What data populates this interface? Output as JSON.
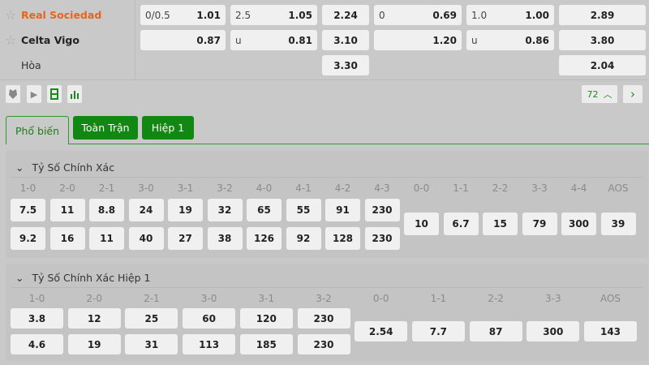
{
  "match": {
    "home": {
      "name": "Real Sociedad",
      "color": "#e8641b"
    },
    "away": {
      "name": "Celta Vigo"
    },
    "draw": {
      "name": "Hòa"
    },
    "rows": [
      [
        {
          "h": "0/0.5",
          "v": "1.01"
        },
        {
          "h": "2.5",
          "v": "1.05"
        },
        {
          "v": "2.24"
        },
        {
          "h": "0",
          "v": "0.69"
        },
        {
          "h": "1.0",
          "v": "1.00"
        },
        {
          "v": "2.89"
        }
      ],
      [
        {
          "h": "",
          "v": "0.87"
        },
        {
          "h": "u",
          "v": "0.81"
        },
        {
          "v": "3.10"
        },
        {
          "h": "",
          "v": "1.20"
        },
        {
          "h": "u",
          "v": "0.86"
        },
        {
          "v": "3.80"
        }
      ],
      [
        null,
        null,
        {
          "v": "3.30"
        },
        null,
        null,
        {
          "v": "2.04"
        }
      ]
    ]
  },
  "toolbar": {
    "icons": [
      "shield-icon",
      "play-icon",
      "list-icon",
      "stats-icon"
    ],
    "count": "72",
    "up": "^",
    "next": "›"
  },
  "tabs": [
    {
      "label": "Phổ biến",
      "active": true
    },
    {
      "label": "Toàn Trận"
    },
    {
      "label": "Hiệp 1"
    }
  ],
  "sections": [
    {
      "title": "Tỷ Số Chính Xác",
      "scores": [
        "1-0",
        "2-0",
        "2-1",
        "3-0",
        "3-1",
        "3-2",
        "4-0",
        "4-1",
        "4-2",
        "4-3"
      ],
      "home": [
        "7.5",
        "11",
        "8.8",
        "24",
        "19",
        "32",
        "65",
        "55",
        "91",
        "230"
      ],
      "away": [
        "9.2",
        "16",
        "11",
        "40",
        "27",
        "38",
        "126",
        "92",
        "128",
        "230"
      ],
      "draws": [
        "0-0",
        "1-1",
        "2-2",
        "3-3",
        "4-4",
        "AOS"
      ],
      "draw_odds": [
        "10",
        "6.7",
        "15",
        "79",
        "300",
        "39"
      ]
    },
    {
      "title": "Tỷ Số Chính Xác Hiệp 1",
      "scores": [
        "1-0",
        "2-0",
        "2-1",
        "3-0",
        "3-1",
        "3-2"
      ],
      "home": [
        "3.8",
        "12",
        "25",
        "60",
        "120",
        "230"
      ],
      "away": [
        "4.6",
        "19",
        "31",
        "113",
        "185",
        "230"
      ],
      "draws": [
        "0-0",
        "1-1",
        "2-2",
        "3-3",
        "AOS"
      ],
      "draw_odds": [
        "2.54",
        "7.7",
        "87",
        "300",
        "143"
      ]
    }
  ],
  "colors": {
    "accent": "#118811",
    "home": "#e8641b"
  }
}
